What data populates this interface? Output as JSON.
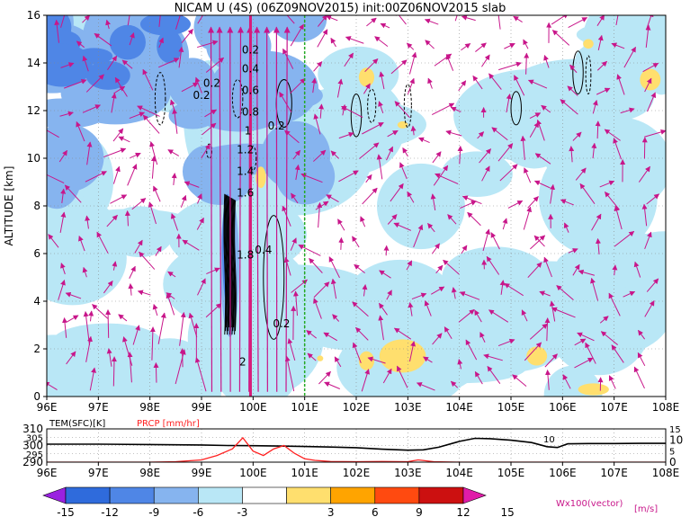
{
  "chart_data": [
    {
      "type": "heatmap",
      "title": "NICAM U (4S) (06Z09NOV2015) init:00Z06NOV2015 slab",
      "xlabel": "",
      "ylabel": "ALTITUDE [km]",
      "x_ticks": [
        "96E",
        "97E",
        "98E",
        "99E",
        "100E",
        "101E",
        "102E",
        "103E",
        "104E",
        "105E",
        "106E",
        "107E",
        "108E"
      ],
      "y_ticks": [
        "0",
        "2",
        "4",
        "6",
        "8",
        "10",
        "12",
        "14",
        "16"
      ],
      "xlim": [
        96,
        108
      ],
      "ylim": [
        0,
        16
      ],
      "grid": true,
      "contour_labels": [
        "0.2",
        "0.2",
        "0.2",
        "0.4",
        "0.6",
        "0.8",
        "1",
        "1.2",
        "1.4",
        "1.6",
        "1.8",
        "2",
        "0.2",
        "0.4",
        "0.2"
      ],
      "reference_lines": [
        {
          "x": 99.95,
          "color": "#d81b7a",
          "style": "solid"
        },
        {
          "x": 101.0,
          "color": "#22aa22",
          "style": "dashed"
        }
      ],
      "colorbar": {
        "levels": [
          "-15",
          "-12",
          "-9",
          "-6",
          "-3",
          "3",
          "6",
          "9",
          "12",
          "15"
        ],
        "colors": [
          "#9a22e0",
          "#2f6bdc",
          "#4f86e6",
          "#86b4ef",
          "#b9e7f6",
          "#ffffff",
          "#ffdf6e",
          "#ffa400",
          "#ff4a10",
          "#cc1010",
          "#e01ca8"
        ],
        "unit": "[m/s]",
        "vector_note": "Wx100(vector)"
      }
    },
    {
      "type": "line",
      "series": [
        {
          "name": "TEM(SFC)[K]",
          "color": "#000000",
          "x": [
            96,
            97,
            98,
            99,
            99.5,
            100,
            100.5,
            101,
            101.5,
            102,
            102.5,
            103,
            103.3,
            103.6,
            104,
            104.3,
            104.6,
            105,
            105.4,
            105.7,
            105.9,
            106.1,
            106.5,
            107,
            107.5,
            108
          ],
          "values": [
            300.8,
            300.8,
            300.6,
            300.3,
            300.0,
            299.9,
            299.7,
            299.4,
            299.1,
            298.7,
            297.8,
            297.2,
            297.4,
            299.0,
            302.5,
            304.3,
            304.1,
            303.2,
            301.8,
            299.3,
            298.8,
            301.0,
            301.2,
            301.2,
            301.3,
            301.3
          ]
        },
        {
          "name": "PRCP [mm/hr]",
          "color": "#ff2020",
          "x": [
            96,
            97,
            98,
            98.5,
            99,
            99.3,
            99.6,
            99.8,
            100,
            100.2,
            100.4,
            100.6,
            100.8,
            101,
            101.2,
            101.5,
            102,
            102.5,
            103,
            103.2,
            103.5,
            104,
            106,
            108
          ],
          "values": [
            0,
            0,
            0,
            0.2,
            1.0,
            3.0,
            6.0,
            11.0,
            5.0,
            3.0,
            6.0,
            7.5,
            4.0,
            1.5,
            0.8,
            0.3,
            0.2,
            0.3,
            0.2,
            1.0,
            0.2,
            0,
            0,
            0
          ]
        }
      ],
      "left_axis_ticks": [
        "310",
        "300",
        "290"
      ],
      "left_axis_minor": [
        "305",
        "295"
      ],
      "right_axis_ticks": [
        "10",
        "0"
      ],
      "right_axis_minor": [
        "15",
        "5"
      ],
      "x_ticks": [
        "96E",
        "97E",
        "98E",
        "99E",
        "100E",
        "101E",
        "102E",
        "103E",
        "104E",
        "105E",
        "106E",
        "107E",
        "108E"
      ],
      "annotations": [
        "10"
      ],
      "ylim_left": [
        290,
        310
      ],
      "ylim_right": [
        0,
        15
      ],
      "grid": true
    }
  ]
}
